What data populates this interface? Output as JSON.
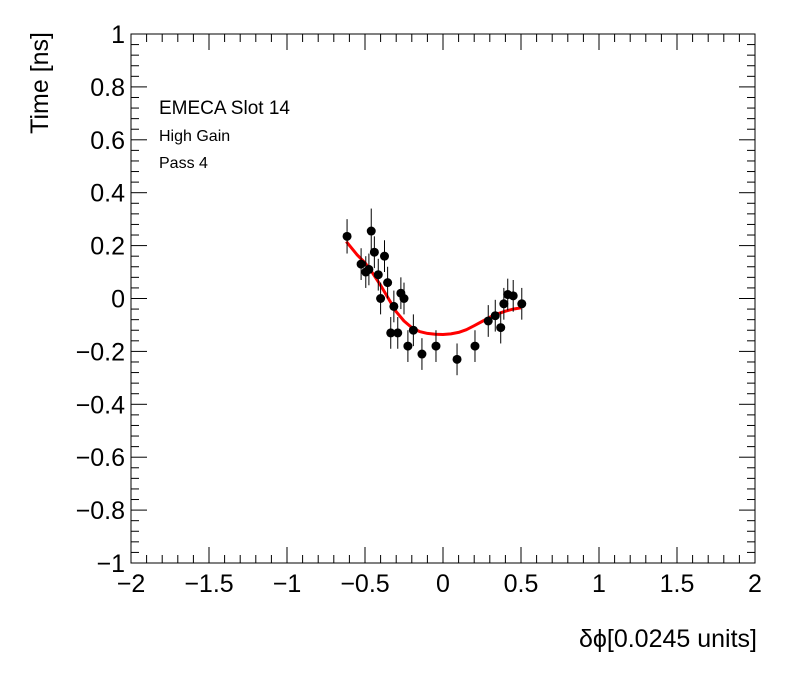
{
  "chart_data": {
    "type": "scatter",
    "title": "",
    "xlabel": "δϕ[0.0245 units]",
    "ylabel": "Time [ns]",
    "xlim": [
      -2,
      2
    ],
    "ylim": [
      -1,
      1
    ],
    "x_ticks": [
      -2,
      -1.5,
      -1,
      -0.5,
      0,
      0.5,
      1,
      1.5,
      2
    ],
    "x_tick_labels": [
      "−2",
      "−1.5",
      "−1",
      "−0.5",
      "0",
      "0.5",
      "1",
      "1.5",
      "2"
    ],
    "y_ticks": [
      -1,
      -0.8,
      -0.6,
      -0.4,
      -0.2,
      0,
      0.2,
      0.4,
      0.6,
      0.8,
      1
    ],
    "y_tick_labels": [
      "−1",
      "−0.8",
      "−0.6",
      "−0.4",
      "−0.2",
      "0",
      "0.2",
      "0.4",
      "0.6",
      "0.8",
      "1"
    ],
    "grid": false,
    "annotations": [
      "EMECA Slot 14",
      "High Gain",
      "Pass 4"
    ],
    "series": [
      {
        "kind": "points-with-errors",
        "color": "#000000",
        "points": [
          {
            "x": -0.615,
            "y": 0.235,
            "err": 0.065
          },
          {
            "x": -0.525,
            "y": 0.13,
            "err": 0.06
          },
          {
            "x": -0.495,
            "y": 0.1,
            "err": 0.06
          },
          {
            "x": -0.475,
            "y": 0.11,
            "err": 0.06
          },
          {
            "x": -0.46,
            "y": 0.255,
            "err": 0.085
          },
          {
            "x": -0.44,
            "y": 0.175,
            "err": 0.06
          },
          {
            "x": -0.415,
            "y": 0.09,
            "err": 0.06
          },
          {
            "x": -0.4,
            "y": 0.0,
            "err": 0.06
          },
          {
            "x": -0.375,
            "y": 0.16,
            "err": 0.06
          },
          {
            "x": -0.355,
            "y": 0.06,
            "err": 0.06
          },
          {
            "x": -0.335,
            "y": -0.13,
            "err": 0.06
          },
          {
            "x": -0.315,
            "y": -0.03,
            "err": 0.06
          },
          {
            "x": -0.29,
            "y": -0.13,
            "err": 0.06
          },
          {
            "x": -0.27,
            "y": 0.02,
            "err": 0.06
          },
          {
            "x": -0.25,
            "y": 0.0,
            "err": 0.06
          },
          {
            "x": -0.225,
            "y": -0.18,
            "err": 0.06
          },
          {
            "x": -0.19,
            "y": -0.12,
            "err": 0.06
          },
          {
            "x": -0.135,
            "y": -0.21,
            "err": 0.06
          },
          {
            "x": -0.045,
            "y": -0.18,
            "err": 0.06
          },
          {
            "x": 0.09,
            "y": -0.23,
            "err": 0.06
          },
          {
            "x": 0.205,
            "y": -0.18,
            "err": 0.06
          },
          {
            "x": 0.29,
            "y": -0.085,
            "err": 0.06
          },
          {
            "x": 0.335,
            "y": -0.065,
            "err": 0.06
          },
          {
            "x": 0.37,
            "y": -0.11,
            "err": 0.06
          },
          {
            "x": 0.39,
            "y": -0.02,
            "err": 0.06
          },
          {
            "x": 0.415,
            "y": 0.015,
            "err": 0.06
          },
          {
            "x": 0.45,
            "y": 0.01,
            "err": 0.06
          },
          {
            "x": 0.505,
            "y": -0.02,
            "err": 0.06
          }
        ]
      },
      {
        "kind": "fit-curve",
        "color": "#ff0000",
        "x": [
          -0.62,
          -0.55,
          -0.5,
          -0.45,
          -0.4,
          -0.35,
          -0.3,
          -0.25,
          -0.2,
          -0.15,
          -0.1,
          -0.05,
          0.0,
          0.05,
          0.1,
          0.15,
          0.2,
          0.25,
          0.3,
          0.35,
          0.4,
          0.45,
          0.5
        ],
        "y": [
          0.215,
          0.165,
          0.135,
          0.095,
          0.05,
          0.0,
          -0.05,
          -0.085,
          -0.11,
          -0.125,
          -0.132,
          -0.135,
          -0.136,
          -0.134,
          -0.128,
          -0.118,
          -0.103,
          -0.087,
          -0.071,
          -0.058,
          -0.048,
          -0.04,
          -0.035
        ]
      }
    ]
  }
}
